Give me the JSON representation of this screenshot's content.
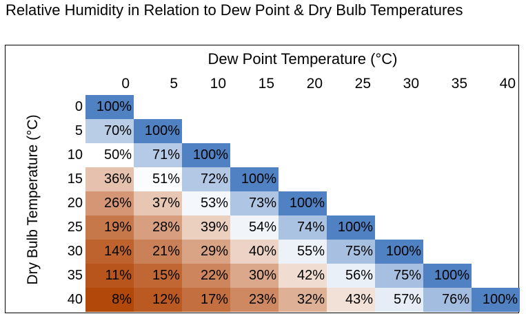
{
  "title": "Relative Humidity in Relation to Dew Point & Dry Bulb Temperatures",
  "chart_data": {
    "type": "heatmap",
    "title": "Relative Humidity in Relation to Dew Point & Dry Bulb Temperatures",
    "xlabel": "Dew Point Temperature (°C)",
    "ylabel": "Dry Bulb Temperature (°C)",
    "columns": [
      "0",
      "5",
      "10",
      "15",
      "20",
      "25",
      "30",
      "35",
      "40"
    ],
    "rows": [
      "0",
      "5",
      "10",
      "15",
      "20",
      "25",
      "30",
      "35",
      "40"
    ],
    "values": [
      [
        100
      ],
      [
        70,
        100
      ],
      [
        50,
        71,
        100
      ],
      [
        36,
        51,
        72,
        100
      ],
      [
        26,
        37,
        53,
        73,
        100
      ],
      [
        19,
        28,
        39,
        54,
        74,
        100
      ],
      [
        14,
        21,
        29,
        40,
        55,
        75,
        100
      ],
      [
        11,
        15,
        22,
        30,
        42,
        56,
        75,
        100
      ],
      [
        8,
        12,
        17,
        23,
        32,
        43,
        57,
        76,
        100
      ]
    ],
    "value_suffix": "%",
    "color_scale": {
      "low": "#b3480b",
      "mid": "#ffffff",
      "high": "#4f81c3",
      "min": 8,
      "mid_value": 50,
      "max": 100
    }
  }
}
